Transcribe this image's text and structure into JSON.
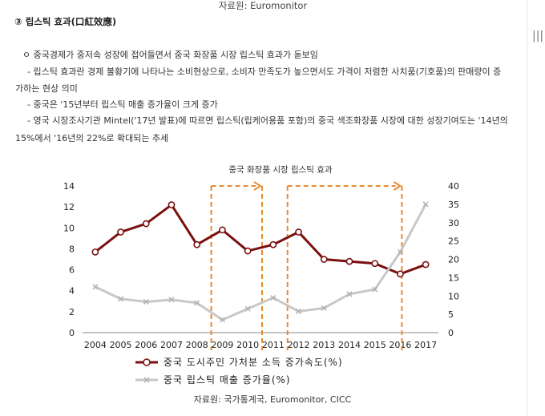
{
  "top_source": "자료원: Euromonitor",
  "section_title": "③ 립스틱 효과(口紅效應)",
  "bullets": [
    "ㅇ 중국경제가 중저속 성장에 접어들면서 중국 화장품 시장 립스틱 효과가 돋보임",
    "- 립스틱 효과란 경제 불황기에 나타나는 소비현상으로, 소비자 만족도가 높으면서도 가격이 저렴한 사치품(기호품)의 판매량이 증",
    "가하는 현상 의미",
    "- 중국은 '15년부터 립스틱 매출 증가율이 크게 증가",
    "- 영국 시장조사기관 Mintel('17년 발표)에 따르면 립스틱(립케어용품 포함)의 중국 색조화장품 시장에 대한 성장기여도는 '14년의",
    "15%에서 '16년의 22%로 확대되는 추세"
  ],
  "chart_data": {
    "type": "line",
    "title": "중국 화장품 시장 립스틱 효과",
    "categories": [
      "2004",
      "2005",
      "2006",
      "2007",
      "2008",
      "2009",
      "2010",
      "2011",
      "2012",
      "2013",
      "2014",
      "2015",
      "2016",
      "2017"
    ],
    "y_left": {
      "min": 0,
      "max": 14,
      "ticks": [
        0,
        2,
        4,
        6,
        8,
        10,
        12,
        14
      ]
    },
    "y_right": {
      "min": 0,
      "max": 40,
      "ticks": [
        0,
        5,
        10,
        15,
        20,
        25,
        30,
        35,
        40
      ]
    },
    "series": [
      {
        "name": "중국 도시주민 가처분 소득 증가속도(%)",
        "axis": "left",
        "color": "#7b1010",
        "marker": "circle",
        "values": [
          7.7,
          9.6,
          10.4,
          12.2,
          8.4,
          9.8,
          7.8,
          8.4,
          9.6,
          7.0,
          6.8,
          6.6,
          5.6,
          6.5
        ]
      },
      {
        "name": "중국 립스틱 매출 증가율(%)",
        "axis": "right",
        "color": "#c8c8c8",
        "marker": "x",
        "values": [
          12.5,
          9.2,
          8.4,
          9.0,
          8.1,
          3.5,
          6.5,
          9.5,
          5.8,
          6.7,
          10.5,
          11.8,
          22.0,
          35.0
        ]
      }
    ],
    "highlights": [
      {
        "from": "2009",
        "to": "2011",
        "color": "#e88a30"
      },
      {
        "from": "2012",
        "to": "2016.5",
        "color": "#e88a30"
      }
    ],
    "legend_position": "bottom"
  },
  "bottom_source": "자료원: 국가통계국, Euromonitor, CICC"
}
